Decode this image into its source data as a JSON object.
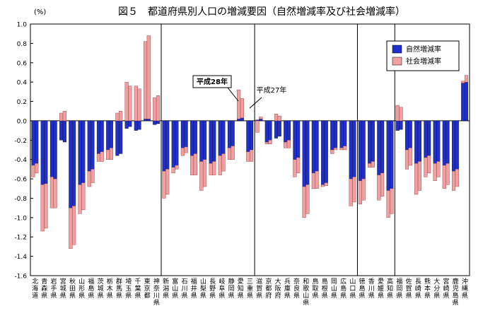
{
  "chart_data": {
    "type": "bar",
    "title": "図５　都道府県別人口の増減要因（自然増減率及び社会増減率）",
    "ylabel": "(%)",
    "ylim": [
      -1.6,
      1.0
    ],
    "yticks": [
      "1.0",
      "0.8",
      "0.6",
      "0.4",
      "0.2",
      "0.0",
      "-0.2",
      "-0.4",
      "-0.6",
      "-0.8",
      "-1.0",
      "-1.2",
      "-1.4",
      "-1.6"
    ],
    "stacked": true,
    "grid": {
      "vertical_separators_after": [
        "神奈川県",
        "三重県",
        "山口県",
        "高知県"
      ]
    },
    "legend_position": "top-right",
    "categories": [
      "北海道",
      "青森県",
      "岩手県",
      "宮城県",
      "秋田県",
      "山形県",
      "福島県",
      "茨城県",
      "栃木県",
      "群馬県",
      "埼玉県",
      "千葉県",
      "東京都",
      "神奈川県",
      "新潟県",
      "富山県",
      "石川県",
      "福井県",
      "山梨県",
      "長野県",
      "岐阜県",
      "静岡県",
      "愛知県",
      "三重県",
      "滋賀県",
      "京都府",
      "大阪府",
      "兵庫県",
      "奈良県",
      "和歌山県",
      "鳥取県",
      "島根県",
      "岡山県",
      "広島県",
      "山口県",
      "徳島県",
      "香川県",
      "愛媛県",
      "高知県",
      "福岡県",
      "佐賀県",
      "長崎県",
      "熊本県",
      "大分県",
      "宮崎県",
      "鹿児島県",
      "沖縄県"
    ],
    "series": [
      {
        "name": "自然増減率",
        "color": "#1f2fc8",
        "values_pairs": [
          [
            -0.46,
            -0.44
          ],
          [
            -0.66,
            -0.65
          ],
          [
            -0.58,
            -0.6
          ],
          [
            -0.2,
            -0.22
          ],
          [
            -0.9,
            -0.88
          ],
          [
            -0.66,
            -0.64
          ],
          [
            -0.52,
            -0.5
          ],
          [
            -0.34,
            -0.32
          ],
          [
            -0.3,
            -0.28
          ],
          [
            -0.36,
            -0.34
          ],
          [
            -0.08,
            -0.06
          ],
          [
            -0.1,
            -0.09
          ],
          [
            0.02,
            0.02
          ],
          [
            -0.04,
            -0.03
          ],
          [
            -0.52,
            -0.5
          ],
          [
            -0.48,
            -0.46
          ],
          [
            -0.28,
            -0.27
          ],
          [
            -0.36,
            -0.34
          ],
          [
            -0.42,
            -0.4
          ],
          [
            -0.44,
            -0.42
          ],
          [
            -0.36,
            -0.34
          ],
          [
            -0.28,
            -0.26
          ],
          [
            0.02,
            0.03
          ],
          [
            -0.32,
            -0.3
          ],
          [
            0.01,
            0.02
          ],
          [
            -0.22,
            -0.2
          ],
          [
            -0.18,
            -0.16
          ],
          [
            -0.22,
            -0.2
          ],
          [
            -0.4,
            -0.38
          ],
          [
            -0.68,
            -0.66
          ],
          [
            -0.54,
            -0.52
          ],
          [
            -0.66,
            -0.64
          ],
          [
            -0.3,
            -0.28
          ],
          [
            -0.28,
            -0.26
          ],
          [
            -0.6,
            -0.58
          ],
          [
            -0.62,
            -0.6
          ],
          [
            -0.44,
            -0.42
          ],
          [
            -0.56,
            -0.54
          ],
          [
            -0.72,
            -0.7
          ],
          [
            -0.1,
            -0.09
          ],
          [
            -0.3,
            -0.28
          ],
          [
            -0.44,
            -0.42
          ],
          [
            -0.38,
            -0.36
          ],
          [
            -0.44,
            -0.42
          ],
          [
            -0.46,
            -0.44
          ],
          [
            -0.52,
            -0.5
          ],
          [
            0.39,
            0.4
          ]
        ]
      },
      {
        "name": "社会増減率",
        "color": "#f0a0a0",
        "values_pairs": [
          [
            -0.12,
            -0.1
          ],
          [
            -0.48,
            -0.46
          ],
          [
            -0.32,
            -0.3
          ],
          [
            0.08,
            0.1
          ],
          [
            -0.42,
            -0.4
          ],
          [
            -0.3,
            -0.28
          ],
          [
            -0.16,
            -0.14
          ],
          [
            -0.08,
            -0.1
          ],
          [
            -0.1,
            -0.12
          ],
          [
            0.08,
            0.1
          ],
          [
            0.4,
            0.36
          ],
          [
            0.36,
            0.33
          ],
          [
            0.8,
            0.86
          ],
          [
            0.24,
            0.26
          ],
          [
            -0.28,
            -0.26
          ],
          [
            -0.06,
            -0.04
          ],
          [
            -0.08,
            -0.06
          ],
          [
            -0.2,
            -0.22
          ],
          [
            -0.3,
            -0.28
          ],
          [
            -0.12,
            -0.14
          ],
          [
            -0.2,
            -0.18
          ],
          [
            -0.12,
            -0.14
          ],
          [
            0.3,
            0.2
          ],
          [
            -0.1,
            -0.12
          ],
          [
            -0.12,
            0.02
          ],
          [
            -0.02,
            -0.04
          ],
          [
            0.07,
            0.05
          ],
          [
            -0.06,
            -0.08
          ],
          [
            -0.18,
            -0.16
          ],
          [
            -0.32,
            -0.3
          ],
          [
            -0.16,
            -0.18
          ],
          [
            -0.02,
            -0.03
          ],
          [
            -0.04,
            -0.02
          ],
          [
            -0.02,
            -0.04
          ],
          [
            -0.28,
            -0.26
          ],
          [
            -0.24,
            -0.22
          ],
          [
            -0.04,
            -0.06
          ],
          [
            -0.26,
            -0.24
          ],
          [
            -0.28,
            -0.26
          ],
          [
            0.16,
            0.14
          ],
          [
            -0.2,
            -0.18
          ],
          [
            -0.32,
            -0.3
          ],
          [
            -0.2,
            -0.18
          ],
          [
            -0.18,
            -0.16
          ],
          [
            -0.24,
            -0.22
          ],
          [
            -0.2,
            -0.18
          ],
          [
            0.02,
            0.07
          ]
        ]
      }
    ],
    "annotations": [
      {
        "text": "平成28年",
        "boxed": true,
        "bold": true
      },
      {
        "text": "平成27年",
        "boxed": false,
        "bold": false
      }
    ]
  },
  "legend": [
    {
      "label": "自然増減率",
      "color": "#1f2fc8"
    },
    {
      "label": "社会増減率",
      "color": "#f0a0a0"
    }
  ]
}
